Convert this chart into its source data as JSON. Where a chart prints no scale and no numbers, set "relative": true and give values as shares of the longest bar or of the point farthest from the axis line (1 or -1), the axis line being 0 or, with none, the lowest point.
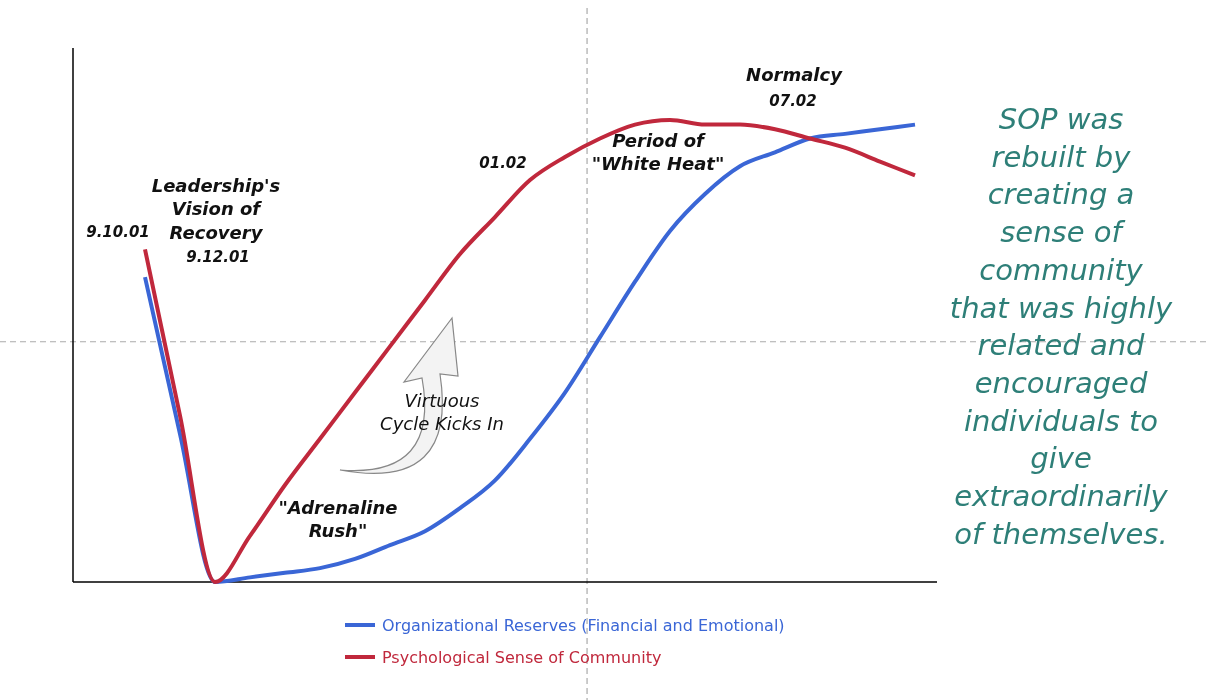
{
  "chart_data": {
    "type": "line",
    "relative": true,
    "categories": [
      null,
      null,
      null,
      null,
      null,
      null,
      null,
      null,
      null,
      null,
      null,
      null,
      null,
      null,
      null,
      null,
      null,
      null,
      null,
      null,
      null,
      null,
      null
    ],
    "series": [
      {
        "name": "Organizational Reserves (Financial and Emotional)",
        "color": "#3a66d6",
        "values": [
          0.66,
          0.32,
          0,
          0.01,
          0.02,
          0.03,
          0.05,
          0.08,
          0.11,
          0.16,
          0.22,
          0.31,
          0.41,
          0.53,
          0.65,
          0.76,
          0.84,
          0.9,
          0.93,
          0.96,
          0.97,
          0.98,
          0.99
        ]
      },
      {
        "name": "Psychological Sense of Community",
        "color": "#c0283c",
        "values": [
          0.72,
          0.36,
          0,
          0.1,
          0.21,
          0.31,
          0.41,
          0.51,
          0.61,
          0.71,
          0.79,
          0.87,
          0.92,
          0.96,
          0.99,
          1,
          0.99,
          0.99,
          0.98,
          0.96,
          0.94,
          0.91,
          0.88
        ]
      }
    ],
    "ref_lines": [
      {
        "axis": "y",
        "value": 0.52,
        "color": "#aaaaaa",
        "line_style": "dashed"
      }
    ],
    "annotations": [
      "9.10.01",
      "Leadership's\nVision of\nRecovery",
      "9.12.01",
      "01.02",
      "Period of\n\"White Heat\"",
      "Normalcy",
      "07.02",
      "\"Adrenaline\nRush\"",
      "Virtuous\nCycle Kicks In",
      "SOP was\nrebuilt by\ncreating a\nsense of\ncommunity\nthat was highly\nrelated and\nencouraged\nindividuals to\ngive\nextraordinarily\nof themselves."
    ],
    "legend": "bottom",
    "marker": "none",
    "line_style": "solid"
  }
}
